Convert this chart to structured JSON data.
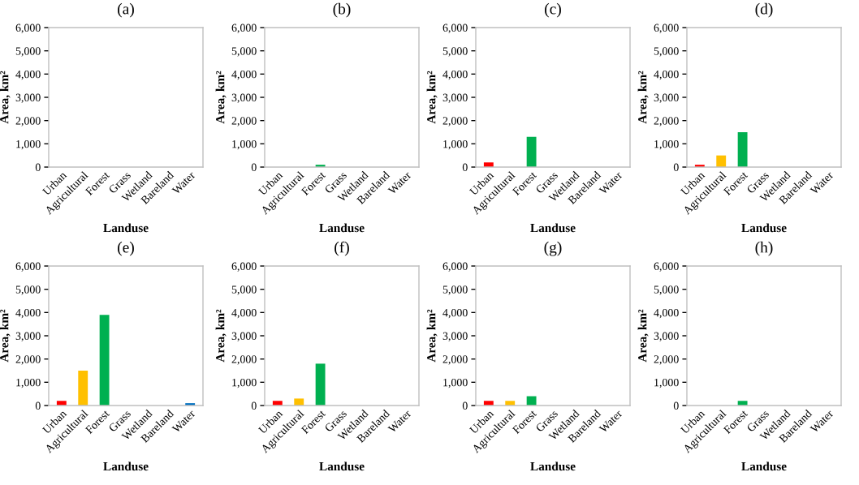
{
  "chart_data": [
    {
      "type": "bar",
      "title": "(a)",
      "xlabel": "Landuse",
      "ylabel": "Area, km²",
      "categories": [
        "Urban",
        "Agricultural",
        "Forest",
        "Grass",
        "Wetland",
        "Bareland",
        "Water"
      ],
      "values": [
        0,
        0,
        0,
        0,
        0,
        0,
        0
      ],
      "colors": [
        "#ff0000",
        "#ffc000",
        "#00b050",
        "#92d050",
        "#00b0f0",
        "#a5a5a5",
        "#0070c0"
      ],
      "ylim": [
        0,
        6000
      ],
      "yticks": [
        0,
        {
          "value": 1000,
          "label": "1,000"
        },
        {
          "value": 2000,
          "label": "2,000"
        },
        {
          "value": 3000,
          "label": "3,000"
        },
        {
          "value": 4000,
          "label": "4,000"
        },
        {
          "value": 5000,
          "label": "5,000"
        },
        {
          "value": 6000,
          "label": "6,000"
        }
      ]
    },
    {
      "type": "bar",
      "title": "(b)",
      "xlabel": "Landuse",
      "ylabel": "Area, km²",
      "categories": [
        "Urban",
        "Agricultural",
        "Forest",
        "Grass",
        "Wetland",
        "Bareland",
        "Water"
      ],
      "values": [
        0,
        0,
        100,
        0,
        0,
        0,
        0
      ],
      "colors": [
        "#ff0000",
        "#ffc000",
        "#00b050",
        "#92d050",
        "#00b0f0",
        "#a5a5a5",
        "#0070c0"
      ],
      "ylim": [
        0,
        6000
      ],
      "yticks": [
        0,
        {
          "value": 1000,
          "label": "1,000"
        },
        {
          "value": 2000,
          "label": "2,000"
        },
        {
          "value": 3000,
          "label": "3,000"
        },
        {
          "value": 4000,
          "label": "4,000"
        },
        {
          "value": 5000,
          "label": "5,000"
        },
        {
          "value": 6000,
          "label": "6,000"
        }
      ]
    },
    {
      "type": "bar",
      "title": "(c)",
      "xlabel": "Landuse",
      "ylabel": "Area, km²",
      "categories": [
        "Urban",
        "Agricultural",
        "Forest",
        "Grass",
        "Wetland",
        "Bareland",
        "Water"
      ],
      "values": [
        200,
        0,
        1300,
        0,
        0,
        0,
        0
      ],
      "colors": [
        "#ff0000",
        "#ffc000",
        "#00b050",
        "#92d050",
        "#00b0f0",
        "#a5a5a5",
        "#0070c0"
      ],
      "ylim": [
        0,
        6000
      ],
      "yticks": [
        0,
        {
          "value": 1000,
          "label": "1,000"
        },
        {
          "value": 2000,
          "label": "2,000"
        },
        {
          "value": 3000,
          "label": "3,000"
        },
        {
          "value": 4000,
          "label": "4,000"
        },
        {
          "value": 5000,
          "label": "5,000"
        },
        {
          "value": 6000,
          "label": "6,000"
        }
      ]
    },
    {
      "type": "bar",
      "title": "(d)",
      "xlabel": "Landuse",
      "ylabel": "Area, km²",
      "categories": [
        "Urban",
        "Agricultural",
        "Forest",
        "Grass",
        "Wetland",
        "Bareland",
        "Water"
      ],
      "values": [
        100,
        500,
        1500,
        0,
        0,
        0,
        0
      ],
      "colors": [
        "#ff0000",
        "#ffc000",
        "#00b050",
        "#92d050",
        "#00b0f0",
        "#a5a5a5",
        "#0070c0"
      ],
      "ylim": [
        0,
        6000
      ],
      "yticks": [
        0,
        {
          "value": 1000,
          "label": "1,000"
        },
        {
          "value": 2000,
          "label": "2,000"
        },
        {
          "value": 3000,
          "label": "3,000"
        },
        {
          "value": 4000,
          "label": "4,000"
        },
        {
          "value": 5000,
          "label": "5,000"
        },
        {
          "value": 6000,
          "label": "6,000"
        }
      ]
    },
    {
      "type": "bar",
      "title": "(e)",
      "xlabel": "Landuse",
      "ylabel": "Area, km²",
      "categories": [
        "Urban",
        "Agricultural",
        "Forest",
        "Grass",
        "Wetland",
        "Bareland",
        "Water"
      ],
      "values": [
        200,
        1500,
        3900,
        0,
        0,
        0,
        100
      ],
      "colors": [
        "#ff0000",
        "#ffc000",
        "#00b050",
        "#92d050",
        "#00b0f0",
        "#a5a5a5",
        "#0070c0"
      ],
      "ylim": [
        0,
        6000
      ],
      "yticks": [
        0,
        {
          "value": 1000,
          "label": "1,000"
        },
        {
          "value": 2000,
          "label": "2,000"
        },
        {
          "value": 3000,
          "label": "3,000"
        },
        {
          "value": 4000,
          "label": "4,000"
        },
        {
          "value": 5000,
          "label": "5,000"
        },
        {
          "value": 6000,
          "label": "6,000"
        }
      ]
    },
    {
      "type": "bar",
      "title": "(f)",
      "xlabel": "Landuse",
      "ylabel": "Area, km²",
      "categories": [
        "Urban",
        "Agricultural",
        "Forest",
        "Grass",
        "Wetland",
        "Bareland",
        "Water"
      ],
      "values": [
        200,
        300,
        1800,
        0,
        0,
        0,
        0
      ],
      "colors": [
        "#ff0000",
        "#ffc000",
        "#00b050",
        "#92d050",
        "#00b0f0",
        "#a5a5a5",
        "#0070c0"
      ],
      "ylim": [
        0,
        6000
      ],
      "yticks": [
        0,
        {
          "value": 1000,
          "label": "1,000"
        },
        {
          "value": 2000,
          "label": "2,000"
        },
        {
          "value": 3000,
          "label": "3,000"
        },
        {
          "value": 4000,
          "label": "4,000"
        },
        {
          "value": 5000,
          "label": "5,000"
        },
        {
          "value": 6000,
          "label": "6,000"
        }
      ]
    },
    {
      "type": "bar",
      "title": "(g)",
      "xlabel": "Landuse",
      "ylabel": "Area, km²",
      "categories": [
        "Urban",
        "Agricultural",
        "Forest",
        "Grass",
        "Wetland",
        "Bareland",
        "Water"
      ],
      "values": [
        200,
        200,
        400,
        0,
        0,
        0,
        0
      ],
      "colors": [
        "#ff0000",
        "#ffc000",
        "#00b050",
        "#92d050",
        "#00b0f0",
        "#a5a5a5",
        "#0070c0"
      ],
      "ylim": [
        0,
        6000
      ],
      "yticks": [
        0,
        {
          "value": 1000,
          "label": "1,000"
        },
        {
          "value": 2000,
          "label": "2,000"
        },
        {
          "value": 3000,
          "label": "3,000"
        },
        {
          "value": 4000,
          "label": "4,000"
        },
        {
          "value": 5000,
          "label": "5,000"
        },
        {
          "value": 6000,
          "label": "6,000"
        }
      ]
    },
    {
      "type": "bar",
      "title": "(h)",
      "xlabel": "Landuse",
      "ylabel": "Area, km²",
      "categories": [
        "Urban",
        "Agricultural",
        "Forest",
        "Grass",
        "Wetland",
        "Bareland",
        "Water"
      ],
      "values": [
        0,
        0,
        200,
        0,
        0,
        0,
        0
      ],
      "colors": [
        "#ff0000",
        "#ffc000",
        "#00b050",
        "#92d050",
        "#00b0f0",
        "#a5a5a5",
        "#0070c0"
      ],
      "ylim": [
        0,
        6000
      ],
      "yticks": [
        0,
        {
          "value": 1000,
          "label": "1,000"
        },
        {
          "value": 2000,
          "label": "2,000"
        },
        {
          "value": 3000,
          "label": "3,000"
        },
        {
          "value": 4000,
          "label": "4,000"
        },
        {
          "value": 5000,
          "label": "5,000"
        },
        {
          "value": 6000,
          "label": "6,000"
        }
      ]
    }
  ]
}
